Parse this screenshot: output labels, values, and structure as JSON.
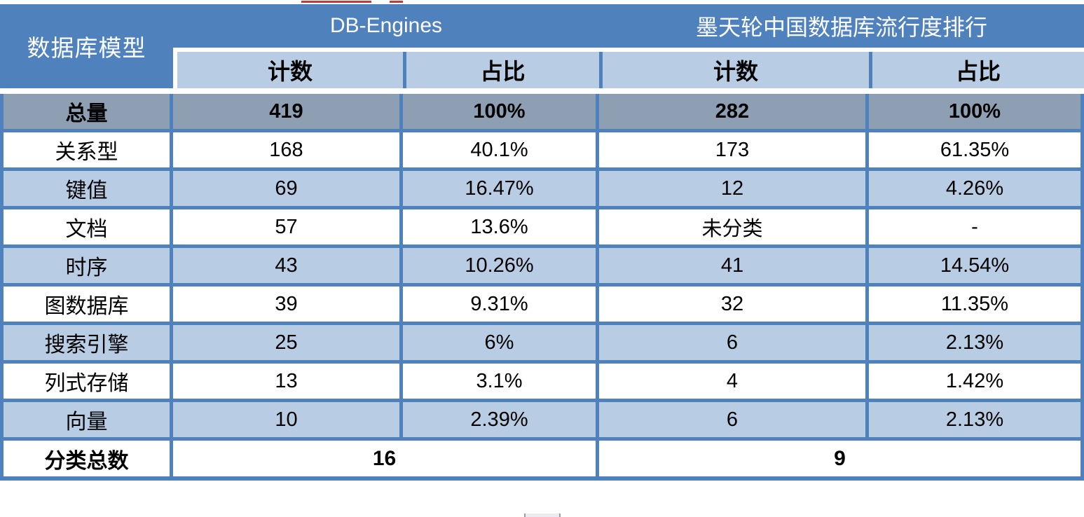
{
  "table": {
    "corner_label": "数据库模型",
    "groups": [
      {
        "label": "DB-Engines",
        "columns": [
          "计数",
          "占比"
        ]
      },
      {
        "label": "墨天轮中国数据库流行度排行",
        "columns": [
          "计数",
          "占比"
        ]
      }
    ],
    "rows": [
      {
        "label": "总量",
        "variant": "total",
        "values": [
          "419",
          "100%",
          "282",
          "100%"
        ]
      },
      {
        "label": "关系型",
        "variant": "white",
        "values": [
          "168",
          "40.1%",
          "173",
          "61.35%"
        ]
      },
      {
        "label": "键值",
        "variant": "blue",
        "values": [
          "69",
          "16.47%",
          "12",
          "4.26%"
        ]
      },
      {
        "label": "文档",
        "variant": "white",
        "values": [
          "57",
          "13.6%",
          "未分类",
          "-"
        ]
      },
      {
        "label": "时序",
        "variant": "blue",
        "values": [
          "43",
          "10.26%",
          "41",
          "14.54%"
        ]
      },
      {
        "label": "图数据库",
        "variant": "white",
        "values": [
          "39",
          "9.31%",
          "32",
          "11.35%"
        ]
      },
      {
        "label": "搜索引擎",
        "variant": "blue",
        "values": [
          "25",
          "6%",
          "6",
          "2.13%"
        ]
      },
      {
        "label": "列式存储",
        "variant": "white",
        "values": [
          "13",
          "3.1%",
          "4",
          "1.42%"
        ]
      },
      {
        "label": "向量",
        "variant": "blue",
        "values": [
          "10",
          "2.39%",
          "6",
          "2.13%"
        ]
      }
    ],
    "footer": {
      "label": "分类总数",
      "values": [
        "16",
        "9"
      ]
    }
  },
  "colors": {
    "header_blue": "#4f81bd",
    "subheader_light_blue": "#b8cce4",
    "total_row_gray": "#8f9fb3",
    "border_blue": "#4f81bd",
    "artifact_red": "#c23a3a"
  },
  "chart_data": {
    "type": "table",
    "title": "数据库模型统计：DB-Engines 与 墨天轮中国数据库流行度排行",
    "column_groups": [
      "DB-Engines",
      "墨天轮中国数据库流行度排行"
    ],
    "columns": [
      "数据库模型",
      "DB-Engines 计数",
      "DB-Engines 占比",
      "墨天轮 计数",
      "墨天轮 占比"
    ],
    "rows": [
      [
        "总量",
        419,
        "100%",
        282,
        "100%"
      ],
      [
        "关系型",
        168,
        "40.1%",
        173,
        "61.35%"
      ],
      [
        "键值",
        69,
        "16.47%",
        12,
        "4.26%"
      ],
      [
        "文档",
        57,
        "13.6%",
        "未分类",
        "-"
      ],
      [
        "时序",
        43,
        "10.26%",
        41,
        "14.54%"
      ],
      [
        "图数据库",
        39,
        "9.31%",
        32,
        "11.35%"
      ],
      [
        "搜索引擎",
        25,
        "6%",
        6,
        "2.13%"
      ],
      [
        "列式存储",
        13,
        "3.1%",
        4,
        "1.42%"
      ],
      [
        "向量",
        10,
        "2.39%",
        6,
        "2.13%"
      ],
      [
        "分类总数",
        16,
        null,
        9,
        null
      ]
    ]
  }
}
